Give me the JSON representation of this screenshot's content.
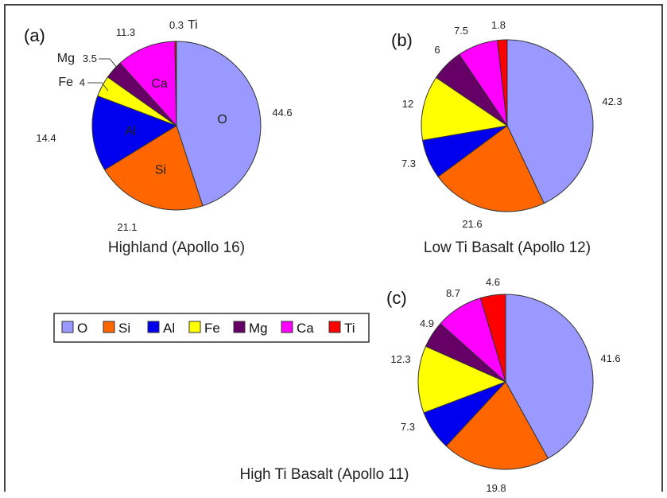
{
  "chart_data": [
    {
      "type": "pie",
      "panel_label": "(a)",
      "title": "Highland (Apollo 16)",
      "slices": [
        {
          "element": "O",
          "value": 44.6,
          "label": "44.6"
        },
        {
          "element": "Si",
          "value": 21.1,
          "label": "21.1"
        },
        {
          "element": "Al",
          "value": 14.4,
          "label": "14.4"
        },
        {
          "element": "Fe",
          "value": 4,
          "label": "4"
        },
        {
          "element": "Mg",
          "value": 3.5,
          "label": "3.5"
        },
        {
          "element": "Ca",
          "value": 11.3,
          "label": "11.3"
        },
        {
          "element": "Ti",
          "value": 0.3,
          "label": "0.3"
        }
      ]
    },
    {
      "type": "pie",
      "panel_label": "(b)",
      "title": "Low Ti Basalt (Apollo 12)",
      "slices": [
        {
          "element": "O",
          "value": 42.3,
          "label": "42.3"
        },
        {
          "element": "Si",
          "value": 21.6,
          "label": "21.6"
        },
        {
          "element": "Al",
          "value": 7.3,
          "label": "7.3"
        },
        {
          "element": "Fe",
          "value": 12,
          "label": "12"
        },
        {
          "element": "Mg",
          "value": 6,
          "label": "6"
        },
        {
          "element": "Ca",
          "value": 7.5,
          "label": "7.5"
        },
        {
          "element": "Ti",
          "value": 1.8,
          "label": "1.8"
        }
      ]
    },
    {
      "type": "pie",
      "panel_label": "(c)",
      "title": "High Ti Basalt (Apollo 11)",
      "slices": [
        {
          "element": "O",
          "value": 41.6,
          "label": "41.6"
        },
        {
          "element": "Si",
          "value": 19.8,
          "label": "19.8"
        },
        {
          "element": "Al",
          "value": 7.3,
          "label": "7.3"
        },
        {
          "element": "Fe",
          "value": 12.3,
          "label": "12.3"
        },
        {
          "element": "Mg",
          "value": 4.9,
          "label": "4.9"
        },
        {
          "element": "Ca",
          "value": 8.7,
          "label": "8.7"
        },
        {
          "element": "Ti",
          "value": 4.6,
          "label": "4.6"
        }
      ]
    }
  ],
  "legend": {
    "entries": [
      {
        "element": "O",
        "color": "#9999ff"
      },
      {
        "element": "Si",
        "color": "#ff6600"
      },
      {
        "element": "Al",
        "color": "#0000ee"
      },
      {
        "element": "Fe",
        "color": "#ffff00"
      },
      {
        "element": "Mg",
        "color": "#660066"
      },
      {
        "element": "Ca",
        "color": "#ff00ff"
      },
      {
        "element": "Ti",
        "color": "#ff0000"
      }
    ]
  }
}
